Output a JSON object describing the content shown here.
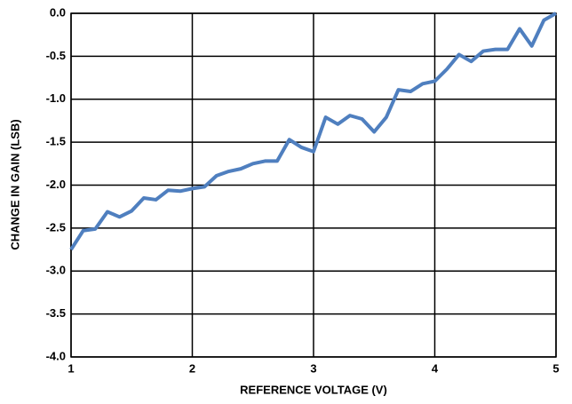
{
  "chart_data": {
    "type": "line",
    "xlabel": "REFERENCE VOLTAGE (V)",
    "ylabel": "CHANGE IN GAIN (LSB)",
    "series": [
      {
        "name": null,
        "color": "#4f7fbf",
        "x": [
          1.0,
          1.1,
          1.2,
          1.3,
          1.4,
          1.5,
          1.6,
          1.7,
          1.8,
          1.9,
          2.0,
          2.1,
          2.2,
          2.3,
          2.4,
          2.5,
          2.6,
          2.7,
          2.8,
          2.9,
          3.0,
          3.1,
          3.2,
          3.3,
          3.4,
          3.5,
          3.6,
          3.7,
          3.8,
          3.9,
          4.0,
          4.1,
          4.2,
          4.3,
          4.4,
          4.5,
          4.6,
          4.7,
          4.8,
          4.9,
          5.0
        ],
        "values": [
          -2.75,
          -2.53,
          -2.51,
          -2.31,
          -2.37,
          -2.3,
          -2.15,
          -2.17,
          -2.06,
          -2.07,
          -2.04,
          -2.02,
          -1.89,
          -1.84,
          -1.81,
          -1.75,
          -1.72,
          -1.72,
          -1.47,
          -1.56,
          -1.61,
          -1.21,
          -1.29,
          -1.19,
          -1.23,
          -1.38,
          -1.21,
          -0.89,
          -0.91,
          -0.82,
          -0.79,
          -0.65,
          -0.48,
          -0.56,
          -0.44,
          -0.42,
          -0.42,
          -0.18,
          -0.38,
          -0.08,
          0.0
        ]
      }
    ],
    "xlim": [
      1,
      5
    ],
    "xticks": [
      1,
      2,
      3,
      4,
      5
    ],
    "ylim": [
      -4,
      0
    ],
    "yticks": [
      {
        "value": -4,
        "label": "-4.0"
      },
      -3.5,
      {
        "value": -3,
        "label": "-3.0"
      },
      -2.5,
      {
        "value": -2,
        "label": "-2.0"
      },
      -1.5,
      {
        "value": -1,
        "label": "-1.0"
      },
      -0.5,
      {
        "value": 0,
        "label": "0.0"
      }
    ],
    "grid": true
  }
}
